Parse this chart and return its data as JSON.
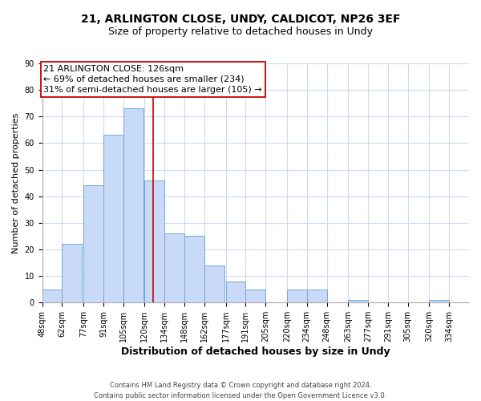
{
  "title": "21, ARLINGTON CLOSE, UNDY, CALDICOT, NP26 3EF",
  "subtitle": "Size of property relative to detached houses in Undy",
  "xlabel": "Distribution of detached houses by size in Undy",
  "ylabel": "Number of detached properties",
  "bar_left_edges": [
    48,
    62,
    77,
    91,
    105,
    120,
    134,
    148,
    162,
    177,
    191,
    205,
    220,
    234,
    248,
    263,
    277,
    291,
    305,
    320
  ],
  "bar_heights": [
    5,
    22,
    44,
    63,
    73,
    46,
    26,
    25,
    14,
    8,
    5,
    0,
    5,
    5,
    0,
    1,
    0,
    0,
    0,
    1
  ],
  "bin_width": 14,
  "bar_color": "#c9daf8",
  "bar_edge_color": "#6fa8dc",
  "reference_line_x": 126,
  "reference_line_color": "#cc0000",
  "annotation_line1": "21 ARLINGTON CLOSE: 126sqm",
  "annotation_line2": "← 69% of detached houses are smaller (234)",
  "annotation_line3": "31% of semi-detached houses are larger (105) →",
  "ylim": [
    0,
    90
  ],
  "yticks": [
    0,
    10,
    20,
    30,
    40,
    50,
    60,
    70,
    80,
    90
  ],
  "x_tick_labels": [
    "48sqm",
    "62sqm",
    "77sqm",
    "91sqm",
    "105sqm",
    "120sqm",
    "134sqm",
    "148sqm",
    "162sqm",
    "177sqm",
    "191sqm",
    "205sqm",
    "220sqm",
    "234sqm",
    "248sqm",
    "263sqm",
    "277sqm",
    "291sqm",
    "305sqm",
    "320sqm",
    "334sqm"
  ],
  "x_tick_positions": [
    48,
    62,
    77,
    91,
    105,
    120,
    134,
    148,
    162,
    177,
    191,
    205,
    220,
    234,
    248,
    263,
    277,
    291,
    305,
    320,
    334
  ],
  "footer_line1": "Contains HM Land Registry data © Crown copyright and database right 2024.",
  "footer_line2": "Contains public sector information licensed under the Open Government Licence v3.0.",
  "bg_color": "#ffffff",
  "grid_color": "#c9daf8",
  "title_fontsize": 10,
  "subtitle_fontsize": 9,
  "xlabel_fontsize": 9,
  "ylabel_fontsize": 8,
  "tick_fontsize": 7,
  "annotation_fontsize": 8,
  "footer_fontsize": 6
}
